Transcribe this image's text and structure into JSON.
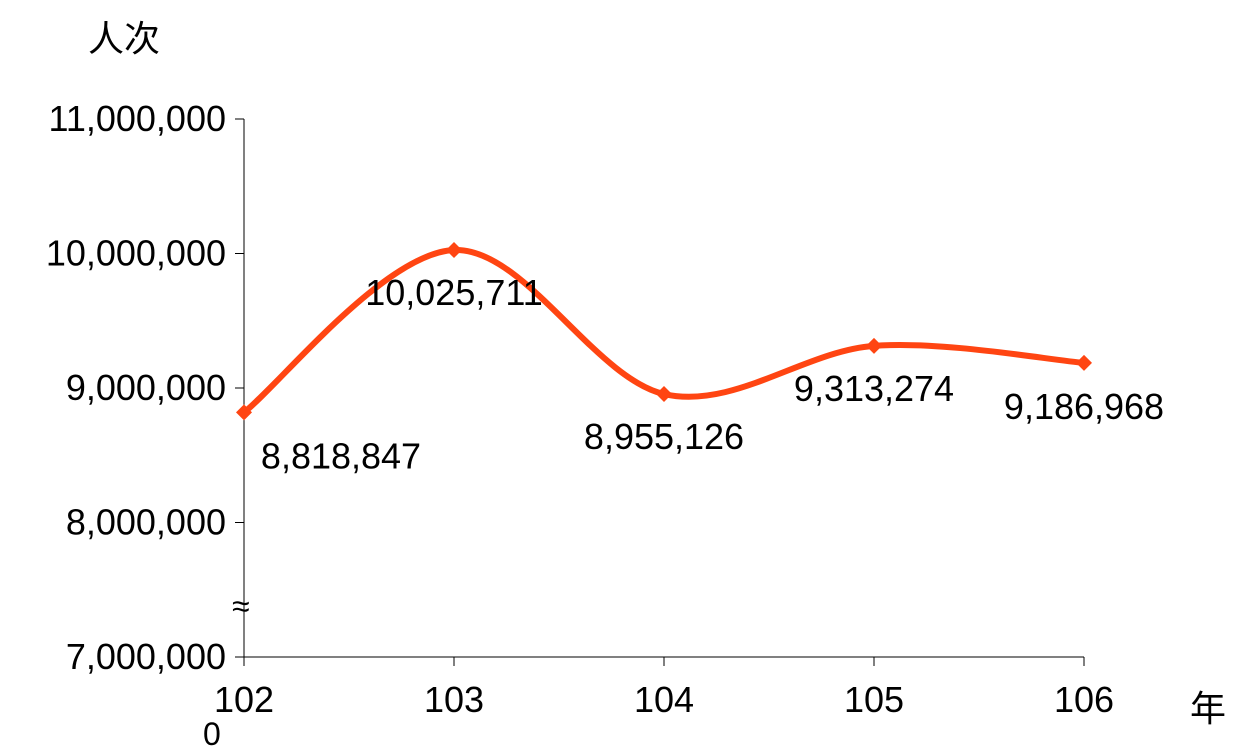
{
  "chart_data": {
    "type": "line",
    "title": "",
    "ylabel": "人次",
    "xlabel": "年",
    "categories": [
      "102",
      "103",
      "104",
      "105",
      "106"
    ],
    "series": [
      {
        "values": [
          8818847,
          10025711,
          8955126,
          9313274,
          9186968
        ],
        "labels": [
          "8,818,847",
          "10,025,711",
          "8,955,126",
          "9,313,274",
          "9,186,968"
        ],
        "color": "#ff4512",
        "marker": "diamond",
        "smooth": true
      }
    ],
    "ylim": [
      7000000,
      11000000
    ],
    "yticks": [
      7000000,
      8000000,
      9000000,
      10000000,
      11000000
    ],
    "ytick_labels": [
      "7,000,000",
      "8,000,000",
      "9,000,000",
      "10,000,000",
      "11,000,000"
    ],
    "axis_break": "≈",
    "origin_extra_label": "0",
    "grid": false,
    "legend": "none"
  }
}
